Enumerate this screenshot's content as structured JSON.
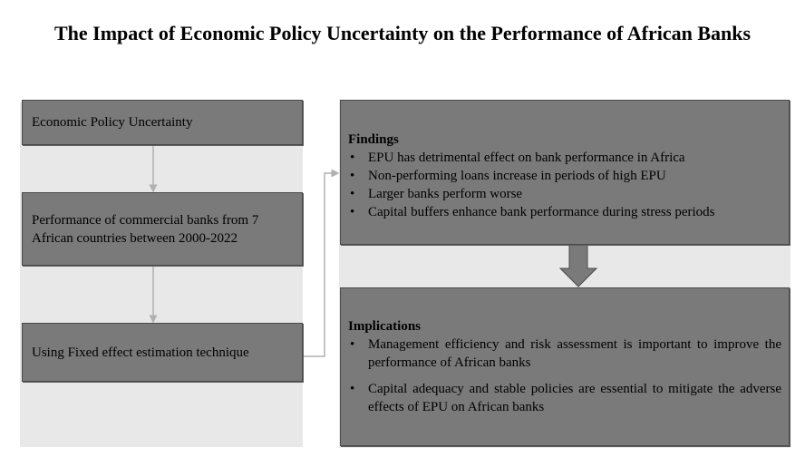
{
  "title": "The Impact of Economic Policy Uncertainty on the Performance of African Banks",
  "boxes": {
    "epu": "Economic Policy Uncertainty",
    "performance": "Performance of commercial banks from 7 African countries between 2000-2022",
    "method": "Using Fixed effect estimation technique"
  },
  "findings": {
    "heading": "Findings",
    "items": [
      "EPU has detrimental effect on bank performance in Africa",
      "Non-performing loans increase in periods of high EPU",
      "Larger banks perform worse",
      "Capital buffers enhance bank performance during stress periods"
    ]
  },
  "implications": {
    "heading": "Implications",
    "items": [
      "Management efficiency and risk assessment is important to improve the performance of African banks",
      "Capital adequacy and stable policies are essential to mitigate the adverse effects of EPU on African banks"
    ]
  }
}
